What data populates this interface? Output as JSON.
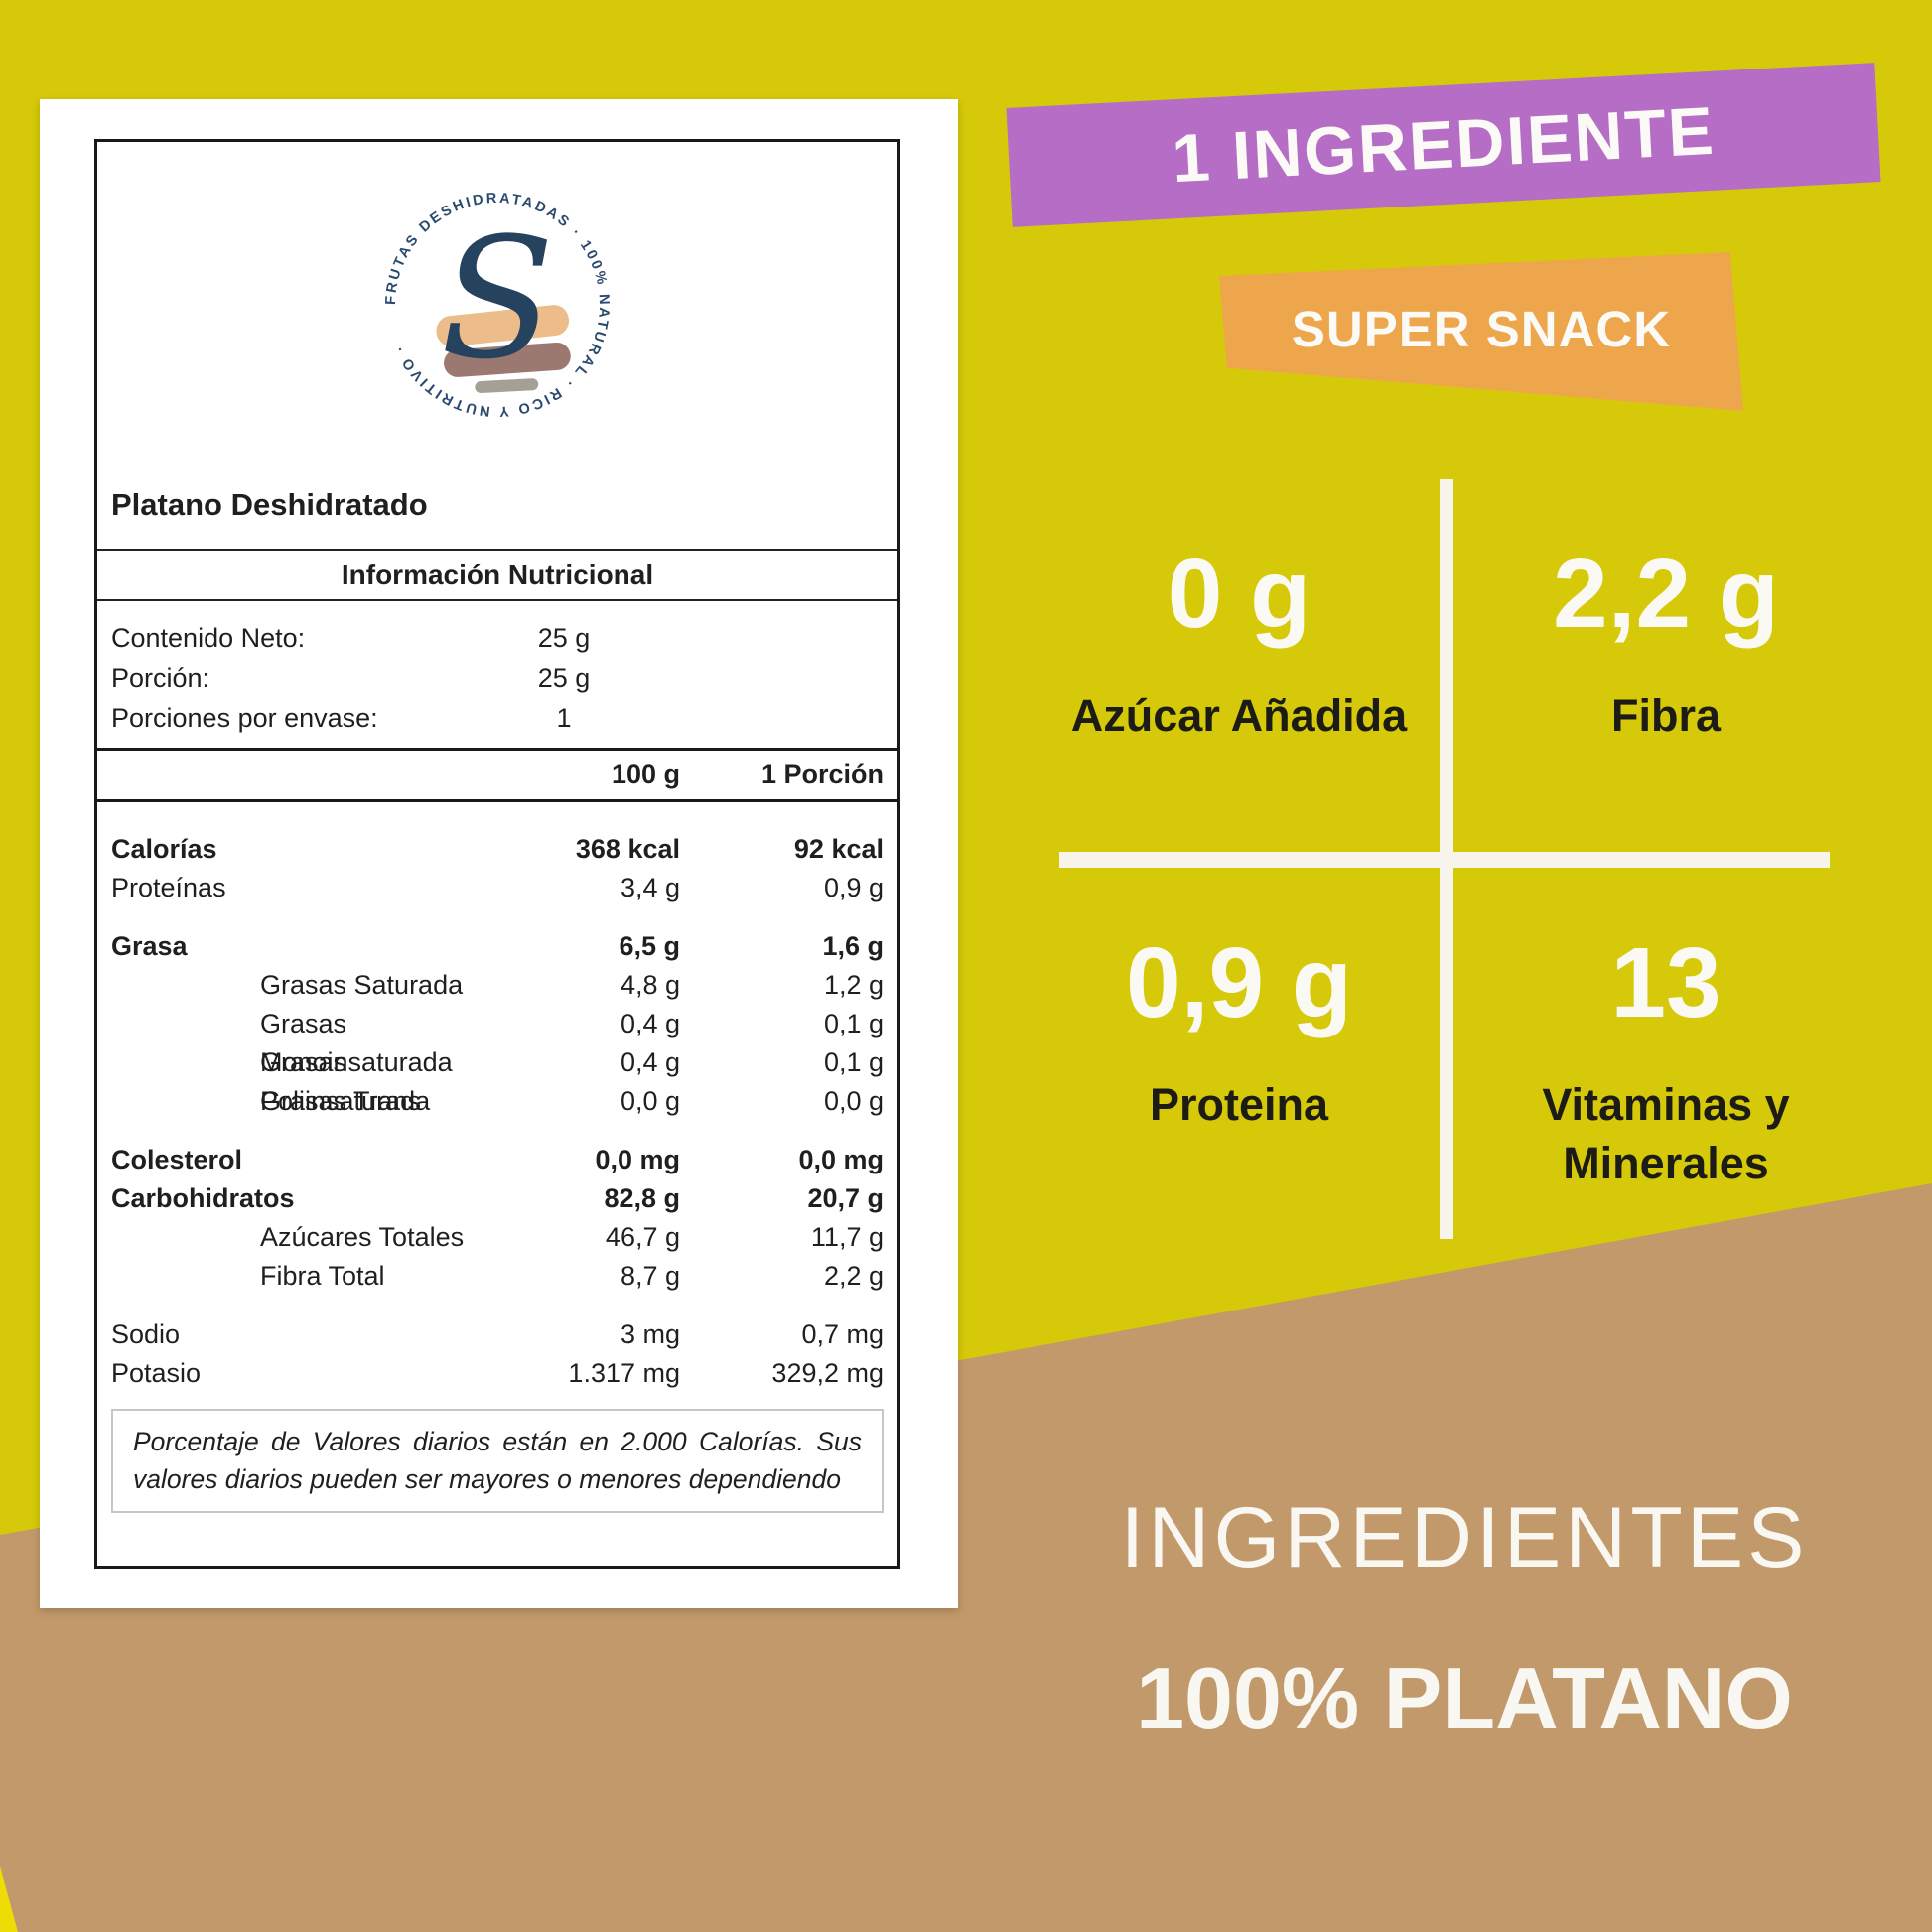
{
  "colors": {
    "background": "#d6c90a",
    "brown": "#c2996a",
    "purple": "#b56dc6",
    "orange": "#eda64c",
    "navy": "#2a4a6e",
    "cream": "#f7f4ec",
    "dark_label": "#1c1c15"
  },
  "card": {
    "brand_title": "Platano Deshidratado",
    "logo": {
      "ring_text": "FRUTAS DESHIDRATADAS · 100% NATURAL · RICO Y NUTRITIVO ·",
      "monogram": "S"
    },
    "table": {
      "header": "Información Nutricional",
      "meta": [
        {
          "label": "Contenido Neto:",
          "value": "25 g"
        },
        {
          "label": "Porción:",
          "value": "25 g"
        },
        {
          "label": "Porciones por envase:",
          "value": "1"
        }
      ],
      "columns": [
        "100 g",
        "1 Porción"
      ],
      "rows": [
        {
          "label": "Calorías",
          "v100": "368 kcal",
          "vp": "92 kcal",
          "bold": true,
          "gap": true
        },
        {
          "label": "Proteínas",
          "v100": "3,4 g",
          "vp": "0,9 g"
        },
        {
          "label": "Grasa",
          "v100": "6,5 g",
          "vp": "1,6 g",
          "bold": true,
          "gap": true
        },
        {
          "label": "Grasas Saturada",
          "v100": "4,8 g",
          "vp": "1,2 g",
          "indent": true
        },
        {
          "label": "Grasas Monoinsaturada",
          "v100": "0,4 g",
          "vp": "0,1 g",
          "indent": true
        },
        {
          "label": "Grasas Poliinsaturada",
          "v100": "0,4 g",
          "vp": "0,1 g",
          "indent": true
        },
        {
          "label": "Grasas Trans",
          "v100": "0,0 g",
          "vp": "0,0 g",
          "indent": true
        },
        {
          "label": "Colesterol",
          "v100": "0,0 mg",
          "vp": "0,0 mg",
          "bold": true,
          "gap": true
        },
        {
          "label": "Carbohidratos",
          "v100": "82,8 g",
          "vp": "20,7 g",
          "bold": true
        },
        {
          "label": "Azúcares Totales",
          "v100": "46,7 g",
          "vp": "11,7 g",
          "indent": true
        },
        {
          "label": "Fibra Total",
          "v100": "8,7 g",
          "vp": "2,2 g",
          "indent": true
        },
        {
          "label": "Sodio",
          "v100": "3 mg",
          "vp": "0,7 mg",
          "gap": true
        },
        {
          "label": "Potasio",
          "v100": "1.317 mg",
          "vp": "329,2 mg"
        }
      ],
      "footnote": "Porcentaje de Valores diarios están en 2.000 Calorías. Sus valores diarios pueden ser mayores o menores dependiendo"
    }
  },
  "banners": {
    "primary": "1 INGREDIENTE",
    "secondary": "SUPER SNACK"
  },
  "stats": [
    {
      "value": "0 g",
      "label": "Azúcar Añadida"
    },
    {
      "value": "2,2 g",
      "label": "Fibra"
    },
    {
      "value": "0,9 g",
      "label": "Proteina"
    },
    {
      "value": "13",
      "label": "Vitaminas y Minerales"
    }
  ],
  "ingredients": {
    "heading": "INGREDIENTES",
    "value": "100% PLATANO"
  }
}
